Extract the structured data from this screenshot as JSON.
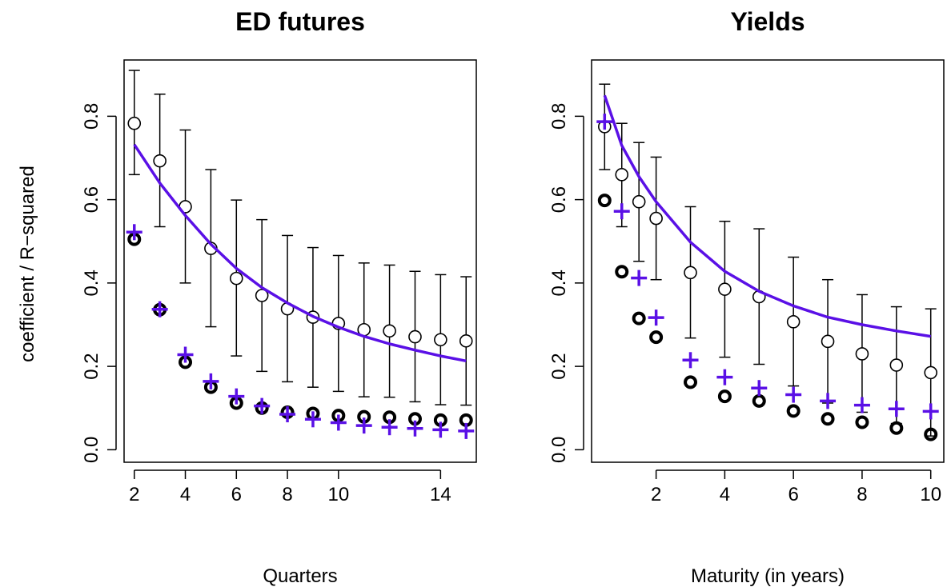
{
  "ylabel": "coefficient / R−squared",
  "colors": {
    "model": "#5a10e6",
    "data": "#000000"
  },
  "chart_data": [
    {
      "type": "scatter",
      "title": "ED futures",
      "xlabel": "Quarters",
      "x": [
        2,
        3,
        4,
        5,
        6,
        7,
        8,
        9,
        10,
        11,
        12,
        13,
        14,
        15
      ],
      "xticks": [
        2,
        4,
        6,
        8,
        10,
        14
      ],
      "xlim": [
        1.6,
        15.4
      ],
      "ylim": [
        -0.03,
        0.935
      ],
      "yticks": [
        0.0,
        0.2,
        0.4,
        0.6,
        0.8
      ],
      "series": [
        {
          "marker": "open-circle",
          "values": [
            0.783,
            0.693,
            0.583,
            0.483,
            0.411,
            0.37,
            0.338,
            0.318,
            0.303,
            0.288,
            0.285,
            0.271,
            0.264,
            0.261
          ],
          "err_low": [
            0.66,
            0.535,
            0.4,
            0.295,
            0.225,
            0.188,
            0.163,
            0.15,
            0.14,
            0.127,
            0.126,
            0.115,
            0.108,
            0.107
          ],
          "err_high": [
            0.91,
            0.853,
            0.767,
            0.672,
            0.599,
            0.552,
            0.514,
            0.485,
            0.466,
            0.448,
            0.443,
            0.428,
            0.42,
            0.415
          ]
        },
        {
          "marker": "bold-circle",
          "values": [
            0.505,
            0.336,
            0.21,
            0.15,
            0.112,
            0.1,
            0.09,
            0.087,
            0.082,
            0.079,
            0.078,
            0.074,
            0.071,
            0.071
          ]
        },
        {
          "marker": "plus",
          "values": [
            0.522,
            0.337,
            0.228,
            0.164,
            0.128,
            0.105,
            0.085,
            0.073,
            0.065,
            0.058,
            0.054,
            0.051,
            0.048,
            0.045
          ]
        },
        {
          "marker": "line",
          "x": [
            2,
            3,
            4,
            5,
            6,
            7,
            8,
            9,
            10,
            11,
            12,
            13,
            14,
            15
          ],
          "values": [
            0.732,
            0.64,
            0.562,
            0.493,
            0.435,
            0.389,
            0.352,
            0.32,
            0.294,
            0.272,
            0.254,
            0.239,
            0.225,
            0.213
          ]
        }
      ]
    },
    {
      "type": "scatter",
      "title": "Yields",
      "xlabel": "Maturity (in years)",
      "x": [
        0.5,
        1,
        1.5,
        2,
        3,
        4,
        5,
        6,
        7,
        8,
        9,
        10
      ],
      "xticks": [
        2,
        4,
        6,
        8,
        10
      ],
      "xlim": [
        0.12,
        10.38
      ],
      "ylim": [
        -0.03,
        0.935
      ],
      "yticks": [
        0.0,
        0.2,
        0.4,
        0.6,
        0.8
      ],
      "series": [
        {
          "marker": "open-circle",
          "values": [
            0.775,
            0.66,
            0.595,
            0.555,
            0.425,
            0.385,
            0.367,
            0.307,
            0.26,
            0.23,
            0.203,
            0.185
          ],
          "err_low": [
            0.672,
            0.535,
            0.452,
            0.408,
            0.268,
            0.222,
            0.205,
            0.153,
            0.112,
            0.09,
            0.063,
            0.033
          ],
          "err_high": [
            0.877,
            0.783,
            0.737,
            0.702,
            0.583,
            0.548,
            0.53,
            0.462,
            0.408,
            0.372,
            0.343,
            0.338
          ]
        },
        {
          "marker": "bold-circle",
          "values": [
            0.598,
            0.427,
            0.315,
            0.27,
            0.162,
            0.128,
            0.117,
            0.093,
            0.074,
            0.066,
            0.052,
            0.037
          ]
        },
        {
          "marker": "plus",
          "values": [
            0.787,
            0.572,
            0.412,
            0.317,
            0.215,
            0.174,
            0.148,
            0.132,
            0.117,
            0.107,
            0.098,
            0.092
          ]
        },
        {
          "marker": "line",
          "x": [
            0.5,
            1,
            1.5,
            2,
            3,
            4,
            5,
            6,
            7,
            8,
            9,
            10
          ],
          "values": [
            0.85,
            0.73,
            0.655,
            0.595,
            0.498,
            0.428,
            0.38,
            0.345,
            0.318,
            0.3,
            0.285,
            0.272
          ]
        }
      ]
    }
  ]
}
